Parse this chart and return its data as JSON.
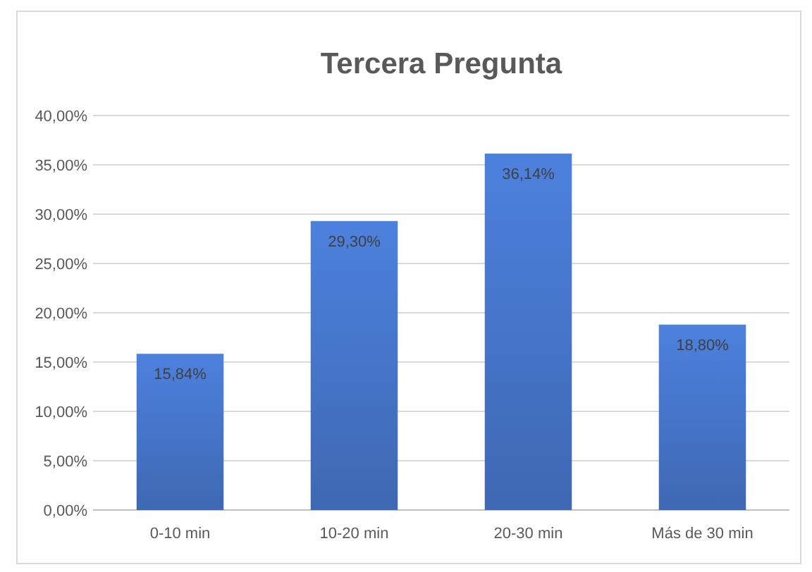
{
  "chart_data": {
    "type": "bar",
    "title": "Tercera Pregunta",
    "categories": [
      "0-10 min",
      "10-20 min",
      "20-30 min",
      "Más de 30 min"
    ],
    "values": [
      15.84,
      29.3,
      36.14,
      18.8
    ],
    "value_labels": [
      "15,84%",
      "29,30%",
      "36,14%",
      "18,80%"
    ],
    "color": "#4472c4",
    "ylim": [
      0,
      40
    ],
    "yticks": [
      {
        "value": 0,
        "label": "0,00%"
      },
      {
        "value": 5,
        "label": "5,00%"
      },
      {
        "value": 10,
        "label": "10,00%"
      },
      {
        "value": 15,
        "label": "15,00%"
      },
      {
        "value": 20,
        "label": "20,00%"
      },
      {
        "value": 25,
        "label": "25,00%"
      },
      {
        "value": 30,
        "label": "30,00%"
      },
      {
        "value": 35,
        "label": "35,00%"
      },
      {
        "value": 40,
        "label": "40,00%"
      }
    ],
    "grid": "y"
  }
}
